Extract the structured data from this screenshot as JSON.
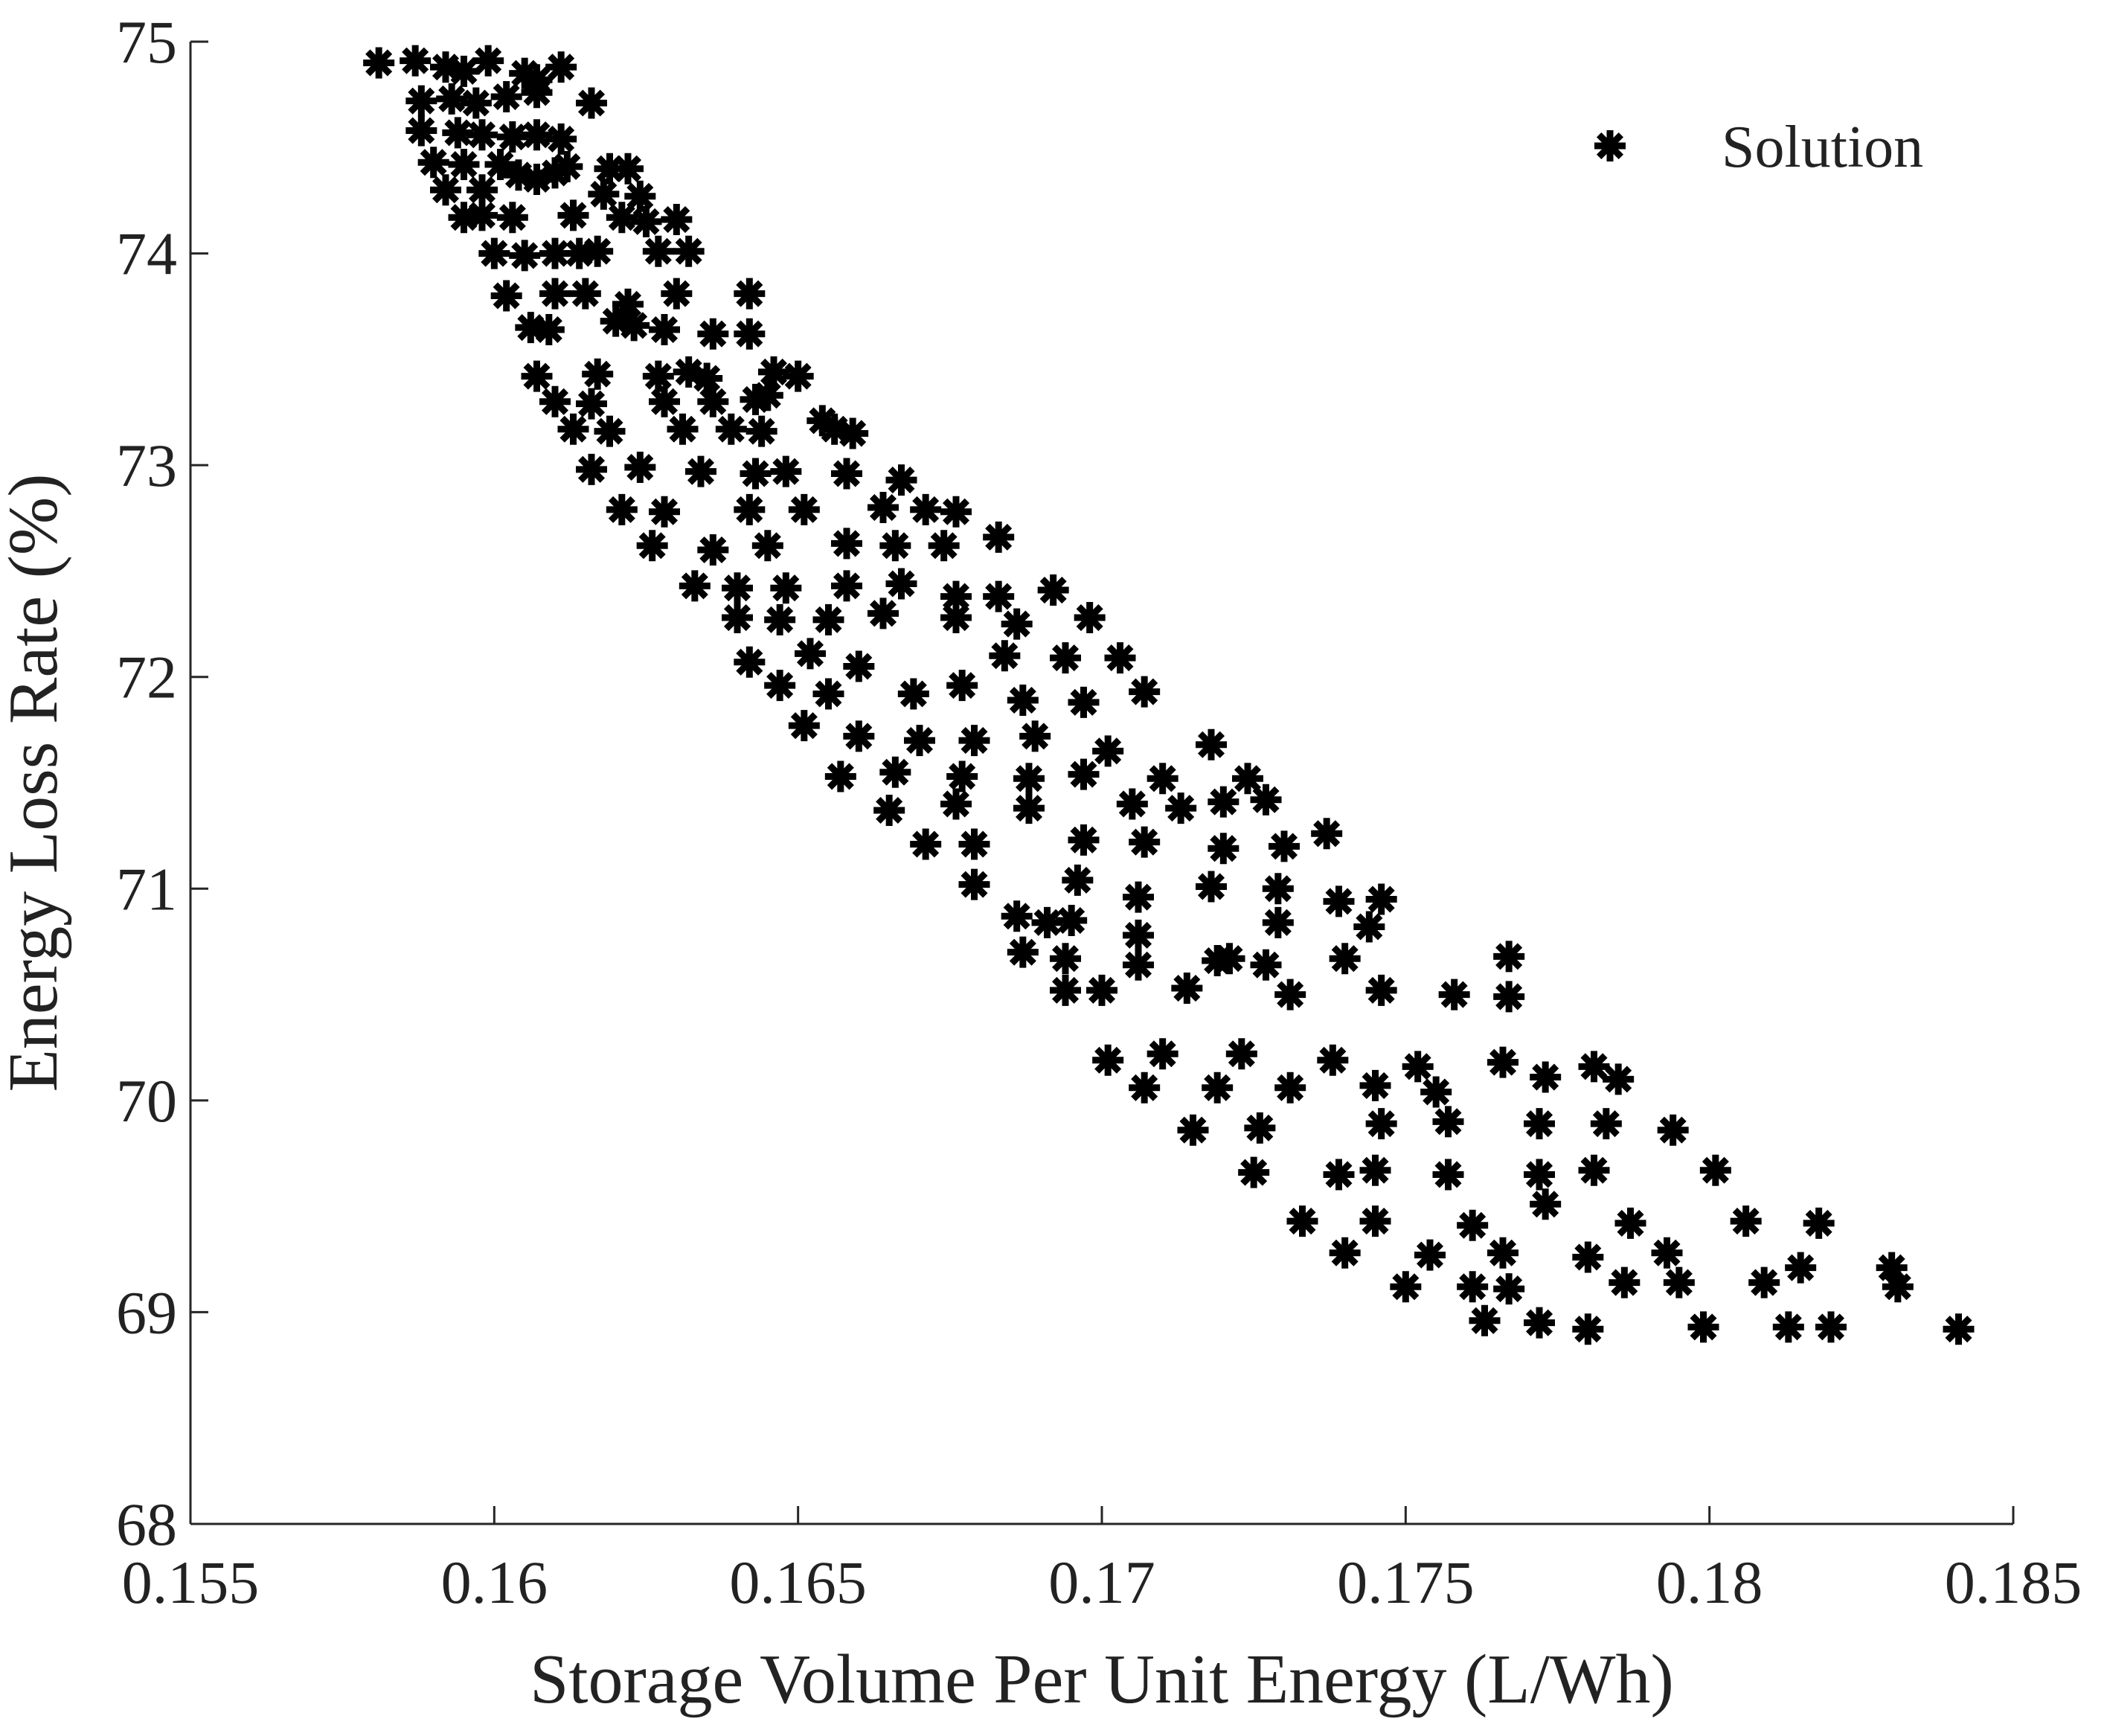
{
  "colors": {
    "marker": "#000000",
    "axis": "#262626",
    "text": "#222222",
    "background": "#ffffff"
  },
  "chart_data": {
    "type": "scatter",
    "title": "",
    "xlabel": "Storage Volume Per Unit Energy (L/Wh)",
    "ylabel": "Energy Loss Rate (%)",
    "xlim": [
      0.155,
      0.185
    ],
    "ylim": [
      68,
      75
    ],
    "xticks": [
      0.155,
      0.16,
      0.165,
      0.17,
      0.175,
      0.18,
      0.185
    ],
    "xtick_labels": [
      "0.155",
      "0.16",
      "0.165",
      "0.17",
      "0.175",
      "0.18",
      "0.185"
    ],
    "yticks": [
      68,
      69,
      70,
      71,
      72,
      73,
      74,
      75
    ],
    "ytick_labels": [
      "68",
      "69",
      "70",
      "71",
      "72",
      "73",
      "74",
      "75"
    ],
    "grid": false,
    "legend": {
      "position": "top-right",
      "entries": [
        {
          "label": "Solution",
          "marker": "asterisk"
        }
      ]
    },
    "series": [
      {
        "name": "Solution",
        "marker": "asterisk",
        "points": [
          [
            0.1581,
            74.9
          ],
          [
            0.1587,
            74.91
          ],
          [
            0.1592,
            74.88
          ],
          [
            0.1595,
            74.86
          ],
          [
            0.1599,
            74.91
          ],
          [
            0.1605,
            74.85
          ],
          [
            0.1607,
            74.82
          ],
          [
            0.1611,
            74.88
          ],
          [
            0.1588,
            74.72
          ],
          [
            0.1593,
            74.73
          ],
          [
            0.1597,
            74.71
          ],
          [
            0.1602,
            74.74
          ],
          [
            0.1607,
            74.76
          ],
          [
            0.1616,
            74.71
          ],
          [
            0.1588,
            74.58
          ],
          [
            0.1594,
            74.57
          ],
          [
            0.1598,
            74.56
          ],
          [
            0.1603,
            74.55
          ],
          [
            0.1607,
            74.56
          ],
          [
            0.1611,
            74.54
          ],
          [
            0.159,
            74.43
          ],
          [
            0.1595,
            74.42
          ],
          [
            0.1601,
            74.42
          ],
          [
            0.1604,
            74.37
          ],
          [
            0.1607,
            74.35
          ],
          [
            0.161,
            74.38
          ],
          [
            0.1612,
            74.41
          ],
          [
            0.1619,
            74.4
          ],
          [
            0.1622,
            74.4
          ],
          [
            0.1592,
            74.3
          ],
          [
            0.1598,
            74.3
          ],
          [
            0.1618,
            74.28
          ],
          [
            0.1624,
            74.27
          ],
          [
            0.1595,
            74.17
          ],
          [
            0.1598,
            74.18
          ],
          [
            0.1603,
            74.17
          ],
          [
            0.1613,
            74.18
          ],
          [
            0.1621,
            74.17
          ],
          [
            0.1625,
            74.15
          ],
          [
            0.163,
            74.16
          ],
          [
            0.16,
            74.0
          ],
          [
            0.1605,
            73.99
          ],
          [
            0.161,
            74.0
          ],
          [
            0.1614,
            74.0
          ],
          [
            0.1617,
            74.01
          ],
          [
            0.1627,
            74.01
          ],
          [
            0.1632,
            74.01
          ],
          [
            0.1602,
            73.8
          ],
          [
            0.161,
            73.81
          ],
          [
            0.1615,
            73.81
          ],
          [
            0.1622,
            73.76
          ],
          [
            0.163,
            73.81
          ],
          [
            0.1642,
            73.81
          ],
          [
            0.1606,
            73.65
          ],
          [
            0.1609,
            73.64
          ],
          [
            0.162,
            73.68
          ],
          [
            0.1623,
            73.66
          ],
          [
            0.1628,
            73.64
          ],
          [
            0.1636,
            73.62
          ],
          [
            0.1642,
            73.62
          ],
          [
            0.1607,
            73.42
          ],
          [
            0.1617,
            73.43
          ],
          [
            0.1627,
            73.42
          ],
          [
            0.1632,
            73.44
          ],
          [
            0.1635,
            73.41
          ],
          [
            0.1646,
            73.44
          ],
          [
            0.165,
            73.42
          ],
          [
            0.161,
            73.3
          ],
          [
            0.1616,
            73.29
          ],
          [
            0.1628,
            73.3
          ],
          [
            0.1636,
            73.3
          ],
          [
            0.1643,
            73.31
          ],
          [
            0.1645,
            73.33
          ],
          [
            0.1613,
            73.17
          ],
          [
            0.1619,
            73.16
          ],
          [
            0.1631,
            73.17
          ],
          [
            0.1639,
            73.17
          ],
          [
            0.1644,
            73.16
          ],
          [
            0.1654,
            73.21
          ],
          [
            0.1656,
            73.17
          ],
          [
            0.1659,
            73.15
          ],
          [
            0.1616,
            72.98
          ],
          [
            0.1624,
            72.99
          ],
          [
            0.1634,
            72.97
          ],
          [
            0.1643,
            72.96
          ],
          [
            0.1648,
            72.97
          ],
          [
            0.1658,
            72.96
          ],
          [
            0.1667,
            72.93
          ],
          [
            0.1621,
            72.79
          ],
          [
            0.1628,
            72.78
          ],
          [
            0.1642,
            72.79
          ],
          [
            0.1651,
            72.79
          ],
          [
            0.1664,
            72.8
          ],
          [
            0.1671,
            72.79
          ],
          [
            0.1676,
            72.78
          ],
          [
            0.1626,
            72.62
          ],
          [
            0.1636,
            72.6
          ],
          [
            0.1645,
            72.62
          ],
          [
            0.1658,
            72.63
          ],
          [
            0.1666,
            72.62
          ],
          [
            0.1674,
            72.62
          ],
          [
            0.1683,
            72.66
          ],
          [
            0.1633,
            72.43
          ],
          [
            0.164,
            72.42
          ],
          [
            0.1648,
            72.42
          ],
          [
            0.1658,
            72.43
          ],
          [
            0.1667,
            72.44
          ],
          [
            0.1676,
            72.38
          ],
          [
            0.1683,
            72.38
          ],
          [
            0.1692,
            72.41
          ],
          [
            0.164,
            72.28
          ],
          [
            0.1647,
            72.27
          ],
          [
            0.1655,
            72.27
          ],
          [
            0.1664,
            72.3
          ],
          [
            0.1676,
            72.28
          ],
          [
            0.1686,
            72.25
          ],
          [
            0.1698,
            72.28
          ],
          [
            0.1642,
            72.07
          ],
          [
            0.1652,
            72.11
          ],
          [
            0.166,
            72.05
          ],
          [
            0.1684,
            72.1
          ],
          [
            0.1694,
            72.09
          ],
          [
            0.1703,
            72.09
          ],
          [
            0.1647,
            71.96
          ],
          [
            0.1655,
            71.92
          ],
          [
            0.1669,
            71.92
          ],
          [
            0.1677,
            71.96
          ],
          [
            0.1687,
            71.89
          ],
          [
            0.1697,
            71.88
          ],
          [
            0.1707,
            71.93
          ],
          [
            0.1651,
            71.77
          ],
          [
            0.166,
            71.72
          ],
          [
            0.167,
            71.7
          ],
          [
            0.1679,
            71.7
          ],
          [
            0.1689,
            71.72
          ],
          [
            0.1701,
            71.65
          ],
          [
            0.1718,
            71.68
          ],
          [
            0.1657,
            71.53
          ],
          [
            0.1666,
            71.55
          ],
          [
            0.1677,
            71.53
          ],
          [
            0.1688,
            71.52
          ],
          [
            0.1697,
            71.54
          ],
          [
            0.171,
            71.52
          ],
          [
            0.1724,
            71.52
          ],
          [
            0.1665,
            71.37
          ],
          [
            0.1676,
            71.4
          ],
          [
            0.1688,
            71.38
          ],
          [
            0.1705,
            71.4
          ],
          [
            0.1713,
            71.38
          ],
          [
            0.172,
            71.41
          ],
          [
            0.1727,
            71.42
          ],
          [
            0.1671,
            71.21
          ],
          [
            0.1679,
            71.21
          ],
          [
            0.1697,
            71.23
          ],
          [
            0.1707,
            71.22
          ],
          [
            0.172,
            71.19
          ],
          [
            0.173,
            71.2
          ],
          [
            0.1737,
            71.26
          ],
          [
            0.1679,
            71.02
          ],
          [
            0.1696,
            71.04
          ],
          [
            0.1706,
            70.96
          ],
          [
            0.1718,
            71.01
          ],
          [
            0.1729,
            71.0
          ],
          [
            0.1739,
            70.94
          ],
          [
            0.1746,
            70.95
          ],
          [
            0.1686,
            70.87
          ],
          [
            0.1691,
            70.84
          ],
          [
            0.1695,
            70.85
          ],
          [
            0.1706,
            70.78
          ],
          [
            0.1729,
            70.84
          ],
          [
            0.1744,
            70.82
          ],
          [
            0.1687,
            70.7
          ],
          [
            0.1694,
            70.67
          ],
          [
            0.1706,
            70.64
          ],
          [
            0.1719,
            70.66
          ],
          [
            0.1721,
            70.67
          ],
          [
            0.1727,
            70.64
          ],
          [
            0.174,
            70.67
          ],
          [
            0.1767,
            70.68
          ],
          [
            0.1694,
            70.52
          ],
          [
            0.17,
            70.52
          ],
          [
            0.1714,
            70.53
          ],
          [
            0.1731,
            70.5
          ],
          [
            0.1746,
            70.52
          ],
          [
            0.1758,
            70.5
          ],
          [
            0.1767,
            70.49
          ],
          [
            0.1701,
            70.19
          ],
          [
            0.171,
            70.22
          ],
          [
            0.1723,
            70.22
          ],
          [
            0.1738,
            70.19
          ],
          [
            0.1752,
            70.16
          ],
          [
            0.1766,
            70.18
          ],
          [
            0.1773,
            70.11
          ],
          [
            0.1781,
            70.16
          ],
          [
            0.1785,
            70.1
          ],
          [
            0.1707,
            70.06
          ],
          [
            0.1719,
            70.06
          ],
          [
            0.1731,
            70.06
          ],
          [
            0.1745,
            70.07
          ],
          [
            0.1755,
            70.04
          ],
          [
            0.1715,
            69.86
          ],
          [
            0.1726,
            69.87
          ],
          [
            0.1746,
            69.89
          ],
          [
            0.1757,
            69.9
          ],
          [
            0.1772,
            69.89
          ],
          [
            0.1783,
            69.89
          ],
          [
            0.1794,
            69.86
          ],
          [
            0.1725,
            69.66
          ],
          [
            0.1739,
            69.65
          ],
          [
            0.1745,
            69.67
          ],
          [
            0.1757,
            69.65
          ],
          [
            0.1772,
            69.65
          ],
          [
            0.1781,
            69.67
          ],
          [
            0.1801,
            69.67
          ],
          [
            0.1733,
            69.43
          ],
          [
            0.1745,
            69.43
          ],
          [
            0.1761,
            69.41
          ],
          [
            0.1773,
            69.51
          ],
          [
            0.1787,
            69.42
          ],
          [
            0.1806,
            69.43
          ],
          [
            0.1818,
            69.42
          ],
          [
            0.174,
            69.28
          ],
          [
            0.1754,
            69.27
          ],
          [
            0.1766,
            69.28
          ],
          [
            0.178,
            69.26
          ],
          [
            0.1793,
            69.28
          ],
          [
            0.1815,
            69.21
          ],
          [
            0.183,
            69.21
          ],
          [
            0.175,
            69.12
          ],
          [
            0.1761,
            69.12
          ],
          [
            0.1767,
            69.11
          ],
          [
            0.1786,
            69.14
          ],
          [
            0.1795,
            69.14
          ],
          [
            0.1809,
            69.14
          ],
          [
            0.1831,
            69.12
          ],
          [
            0.1763,
            68.96
          ],
          [
            0.1772,
            68.95
          ],
          [
            0.178,
            68.92
          ],
          [
            0.1799,
            68.93
          ],
          [
            0.1813,
            68.93
          ],
          [
            0.182,
            68.93
          ],
          [
            0.1841,
            68.92
          ]
        ]
      }
    ]
  }
}
